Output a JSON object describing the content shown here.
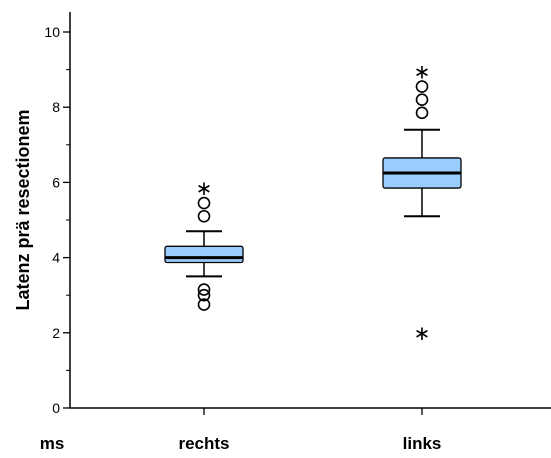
{
  "chart_data": {
    "type": "box",
    "ylabel": "Latenz prä resectionem",
    "unit_label": "ms",
    "ylim": [
      0,
      10
    ],
    "yticks": [
      "0",
      "2",
      "4",
      "6",
      "8",
      "10"
    ],
    "categories": [
      "rechts",
      "links"
    ],
    "box_color": "#99ccff",
    "boxes": [
      {
        "category": "rechts",
        "whisker_low": 3.5,
        "q1": 3.87,
        "median": 4.0,
        "q3": 4.3,
        "whisker_high": 4.7,
        "outliers": [
          2.75,
          3.0,
          3.15,
          5.1,
          5.45
        ],
        "extremes": [
          5.85
        ]
      },
      {
        "category": "links",
        "whisker_low": 5.1,
        "q1": 5.85,
        "median": 6.25,
        "q3": 6.65,
        "whisker_high": 7.4,
        "outliers": [
          7.85,
          8.2,
          8.55
        ],
        "extremes": [
          2.0,
          8.95
        ]
      }
    ]
  }
}
